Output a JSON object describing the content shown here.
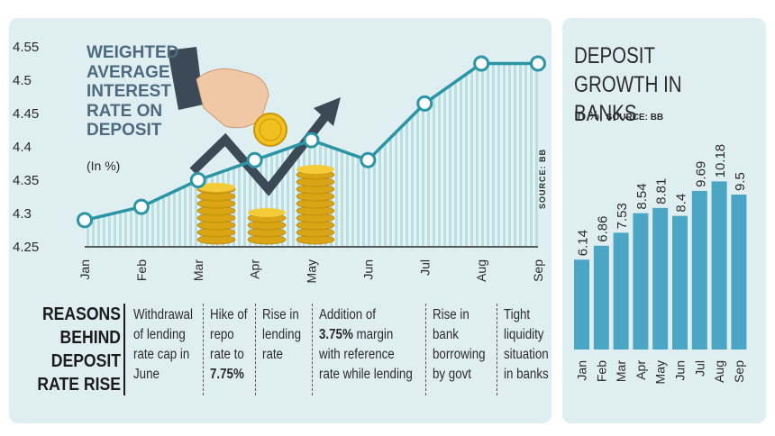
{
  "chart_data": [
    {
      "type": "area",
      "title": "WEIGHTED AVERAGE INTEREST RATE ON DEPOSIT",
      "unit": "(In %)",
      "source": "SOURCE: BB",
      "categories": [
        "Jan",
        "Feb",
        "Mar",
        "Apr",
        "May",
        "Jun",
        "Jul",
        "Aug",
        "Sep"
      ],
      "values": [
        4.29,
        4.31,
        4.35,
        4.38,
        4.41,
        4.38,
        4.465,
        4.525,
        4.525
      ],
      "yticks": [
        "4.25",
        "4.3",
        "4.35",
        "4.4",
        "4.45",
        "4.5",
        "4.55"
      ],
      "ylim": [
        4.25,
        4.55
      ],
      "colors": {
        "line": "#2b95a6",
        "fill": "#b9dfe3",
        "marker_fill": "#ffffff",
        "arrow": "#3c4a57",
        "coin": "#e8b81a"
      }
    },
    {
      "type": "bar",
      "title": "DEPOSIT GROWTH IN BANKS",
      "unit": "In %;",
      "source": "SOURCE: BB",
      "categories": [
        "Jan",
        "Feb",
        "Mar",
        "Apr",
        "May",
        "Jun",
        "Jul",
        "Aug",
        "Sep"
      ],
      "values": [
        6.14,
        6.86,
        7.53,
        8.54,
        8.81,
        8.4,
        9.69,
        10.18,
        9.5
      ],
      "labels": [
        "6.14",
        "6.86",
        "7.53",
        "8.54",
        "8.81",
        "8.4",
        "9.69",
        "10.18",
        "9.5"
      ],
      "colors": {
        "bar": "#4aa6c4"
      }
    }
  ],
  "reasons": {
    "heading": [
      "REASONS",
      "BEHIND",
      "DEPOSIT",
      "RATE RISE"
    ],
    "items": [
      {
        "lines": [
          "Withdrawal",
          "of lending",
          "rate cap in",
          "June"
        ]
      },
      {
        "lines": [
          "Hike of",
          "repo",
          "rate to",
          "7.75%"
        ]
      },
      {
        "lines": [
          "Rise in",
          "lending",
          "rate"
        ]
      },
      {
        "lines": [
          "Addition of",
          "3.75% margin",
          "with reference",
          "rate while lending"
        ]
      },
      {
        "lines": [
          "Rise in",
          "bank",
          "borrowing",
          "by govt"
        ]
      },
      {
        "lines": [
          "Tight",
          "liquidity",
          "situation",
          "in banks"
        ]
      }
    ]
  }
}
